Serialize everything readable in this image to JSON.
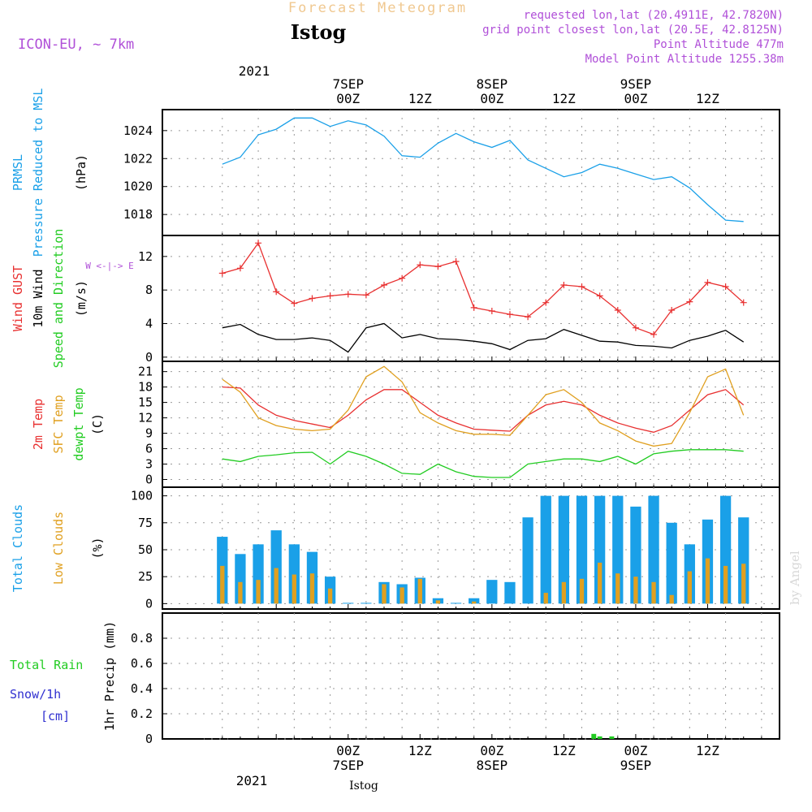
{
  "header": {
    "forecast_title": "Forecast Meteogram",
    "location": "Istog",
    "model": "ICON-EU, ~ 7km",
    "requested": "requested lon,lat (20.4911E, 42.7820N)",
    "grid_point": "grid point closest lon,lat (20.5E, 42.8125N)",
    "point_altitude": "Point Altitude 477m",
    "model_altitude": "Model Point Altitude 1255.38m"
  },
  "time_axis": {
    "top_year": "2021",
    "ticks": [
      {
        "hour": 21,
        "date": "7SEP",
        "time": "00Z"
      },
      {
        "hour": 33,
        "date": "",
        "time": "12Z"
      },
      {
        "hour": 45,
        "date": "8SEP",
        "time": "00Z"
      },
      {
        "hour": 57,
        "date": "",
        "time": "12Z"
      },
      {
        "hour": 69,
        "date": "9SEP",
        "time": "00Z"
      },
      {
        "hour": 81,
        "date": "",
        "time": "12Z"
      }
    ],
    "bottom_year": "2021",
    "bottom_location": "Istog"
  },
  "watermark": "by Angel",
  "chart_data": [
    {
      "type": "line",
      "panel": "pressure",
      "ylabel_lines": [
        "PRMSL",
        "Pressure Reduced to MSL",
        "(hPa)"
      ],
      "ylim": [
        1016.5,
        1025.5
      ],
      "yticks": [
        "1018",
        "1020",
        "1022",
        "1024"
      ],
      "grid": true,
      "colors": {
        "series": "#1aa0e8"
      },
      "x": [
        0,
        3,
        6,
        9,
        12,
        15,
        18,
        21,
        24,
        27,
        30,
        33,
        36,
        39,
        42,
        45,
        48,
        51,
        54,
        57,
        60,
        63,
        66,
        69,
        72,
        75,
        78,
        81,
        84,
        87
      ],
      "series": [
        {
          "name": "",
          "values": [
            1021.6,
            1022.1,
            1023.7,
            1024.1,
            1024.9,
            1024.9,
            1024.3,
            1024.7,
            1024.4,
            1023.6,
            1022.2,
            1022.1,
            1023.1,
            1023.8,
            1023.2,
            1022.8,
            1023.3,
            1021.9,
            1021.3,
            1020.7,
            1021.0,
            1021.6,
            1021.3,
            1020.9,
            1020.5,
            1020.7,
            1019.9,
            1018.7,
            1017.6,
            1017.5
          ]
        }
      ]
    },
    {
      "type": "line",
      "panel": "wind",
      "ylabel_lines": [
        "Wind GUST",
        "10m Wind",
        "Speed and Direction",
        "(m/s)"
      ],
      "compass": "W <-|-> E",
      "ylim": [
        -0.5,
        14.5
      ],
      "yticks": [
        "0",
        "4",
        "8",
        "12"
      ],
      "grid": true,
      "colors": {
        "gust": "#e83030",
        "wind": "#000000"
      },
      "x": [
        0,
        3,
        6,
        9,
        12,
        15,
        18,
        21,
        24,
        27,
        30,
        33,
        36,
        39,
        42,
        45,
        48,
        51,
        54,
        57,
        60,
        63,
        66,
        69,
        72,
        75,
        78,
        81,
        84,
        87
      ],
      "series": [
        {
          "name": "Wind GUST",
          "values": [
            10.0,
            10.6,
            13.6,
            7.8,
            6.4,
            7.0,
            7.3,
            7.5,
            7.4,
            8.6,
            9.4,
            11.0,
            10.8,
            11.4,
            5.9,
            5.5,
            5.1,
            4.8,
            6.5,
            8.6,
            8.4,
            7.3,
            5.6,
            3.5,
            2.7,
            5.6,
            6.6,
            8.9,
            8.4,
            6.5
          ]
        },
        {
          "name": "10m Wind",
          "values": [
            3.5,
            3.9,
            2.7,
            2.1,
            2.1,
            2.3,
            2.0,
            0.6,
            3.5,
            4.0,
            2.3,
            2.7,
            2.2,
            2.1,
            1.9,
            1.6,
            0.9,
            2.0,
            2.2,
            3.3,
            2.6,
            1.9,
            1.8,
            1.4,
            1.3,
            1.1,
            2.0,
            2.5,
            3.2,
            1.8
          ]
        }
      ]
    },
    {
      "type": "line",
      "panel": "temperature",
      "ylabel_lines": [
        "2m Temp",
        "SFC Temp",
        "dewpt Temp",
        "(C)"
      ],
      "ylim": [
        -1.5,
        23
      ],
      "yticks": [
        "0",
        "3",
        "6",
        "9",
        "12",
        "15",
        "18",
        "21"
      ],
      "grid": true,
      "colors": {
        "t2m": "#e83030",
        "sfc": "#e0a020",
        "dew": "#22cc22"
      },
      "x": [
        0,
        3,
        6,
        9,
        12,
        15,
        18,
        21,
        24,
        27,
        30,
        33,
        36,
        39,
        42,
        45,
        48,
        51,
        54,
        57,
        60,
        63,
        66,
        69,
        72,
        75,
        78,
        81,
        84,
        87
      ],
      "series": [
        {
          "name": "2m Temp",
          "values": [
            18.0,
            17.8,
            14.5,
            12.5,
            11.5,
            10.8,
            10.1,
            12.5,
            15.5,
            17.5,
            17.5,
            15.0,
            12.5,
            11.0,
            9.8,
            9.6,
            9.4,
            12.5,
            14.5,
            15.2,
            14.5,
            12.5,
            11.0,
            10.0,
            9.2,
            10.5,
            13.5,
            16.5,
            17.5,
            14.5
          ]
        },
        {
          "name": "SFC Temp",
          "values": [
            19.5,
            17.0,
            12.0,
            10.5,
            9.8,
            9.5,
            9.8,
            13.5,
            20.0,
            22.0,
            19.0,
            13.0,
            11.0,
            9.5,
            8.8,
            8.8,
            8.6,
            12.5,
            16.5,
            17.5,
            15.0,
            11.0,
            9.5,
            7.5,
            6.5,
            7.0,
            13.0,
            20.0,
            21.5,
            12.5
          ]
        },
        {
          "name": "dewpt Temp",
          "values": [
            4.0,
            3.5,
            4.5,
            4.8,
            5.2,
            5.3,
            3.0,
            5.5,
            4.5,
            3.0,
            1.2,
            1.0,
            3.0,
            1.5,
            0.6,
            0.4,
            0.4,
            3.0,
            3.5,
            4.0,
            4.0,
            3.5,
            4.5,
            3.0,
            5.0,
            5.5,
            5.8,
            5.8,
            5.8,
            5.5
          ]
        }
      ]
    },
    {
      "type": "bar",
      "panel": "clouds",
      "ylabel_lines": [
        "Total Clouds",
        "Low Clouds",
        "(%)"
      ],
      "ylim": [
        -5,
        108
      ],
      "yticks": [
        "0",
        "25",
        "50",
        "75",
        "100"
      ],
      "grid": true,
      "colors": {
        "total": "#1aa0e8",
        "low": "#e0a020"
      },
      "x": [
        0,
        3,
        6,
        9,
        12,
        15,
        18,
        21,
        24,
        27,
        30,
        33,
        36,
        39,
        42,
        45,
        48,
        51,
        54,
        57,
        60,
        63,
        66,
        69,
        72,
        75,
        78,
        81,
        84,
        87
      ],
      "series": [
        {
          "name": "Total Clouds",
          "values": [
            62,
            46,
            55,
            68,
            55,
            48,
            25,
            0,
            0,
            20,
            18,
            24,
            5,
            0,
            5,
            22,
            20,
            80,
            100,
            100,
            100,
            100,
            100,
            90,
            100,
            75,
            55,
            78,
            100,
            80
          ]
        },
        {
          "name": "Low Clouds",
          "values": [
            35,
            20,
            22,
            33,
            27,
            28,
            14,
            0,
            0,
            18,
            15,
            23,
            3,
            0,
            2,
            0,
            0,
            0,
            10,
            20,
            23,
            38,
            28,
            25,
            20,
            8,
            30,
            42,
            35,
            37
          ]
        }
      ]
    },
    {
      "type": "bar",
      "panel": "precip",
      "left_labels": {
        "total_rain": "Total Rain",
        "snow": "Snow/1h",
        "cm": "[cm]"
      },
      "ylabel_lines": [
        "1hr Precip (mm)"
      ],
      "ylim": [
        0,
        1.0
      ],
      "yticks": [
        "0",
        "0.2",
        "0.4",
        "0.6",
        "0.8"
      ],
      "grid": true,
      "colors": {
        "rain": "#22cc22"
      },
      "x": [
        62,
        63,
        65
      ],
      "series": [
        {
          "name": "Total Rain",
          "values": [
            0.04,
            0.02,
            0.02
          ]
        }
      ]
    }
  ]
}
